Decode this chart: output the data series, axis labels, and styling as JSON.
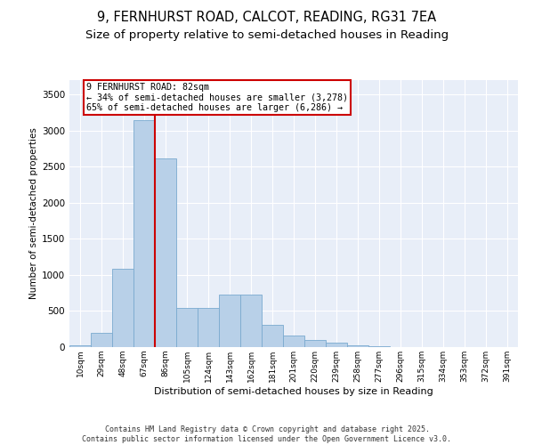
{
  "title_line1": "9, FERNHURST ROAD, CALCOT, READING, RG31 7EA",
  "title_line2": "Size of property relative to semi-detached houses in Reading",
  "xlabel": "Distribution of semi-detached houses by size in Reading",
  "ylabel": "Number of semi-detached properties",
  "categories": [
    "10sqm",
    "29sqm",
    "48sqm",
    "67sqm",
    "86sqm",
    "105sqm",
    "124sqm",
    "143sqm",
    "162sqm",
    "181sqm",
    "201sqm",
    "220sqm",
    "239sqm",
    "258sqm",
    "277sqm",
    "296sqm",
    "315sqm",
    "334sqm",
    "353sqm",
    "372sqm",
    "391sqm"
  ],
  "values": [
    25,
    200,
    1080,
    3150,
    2620,
    540,
    540,
    730,
    730,
    310,
    155,
    100,
    60,
    30,
    10,
    5,
    2,
    1,
    0,
    0,
    0
  ],
  "bar_color": "#b8d0e8",
  "bar_edge_color": "#7aaacf",
  "vline_color": "#cc0000",
  "vline_x": 3.5,
  "annotation_text": "9 FERNHURST ROAD: 82sqm\n← 34% of semi-detached houses are smaller (3,278)\n65% of semi-detached houses are larger (6,286) →",
  "annotation_box_color": "#ffffff",
  "annotation_box_edge": "#cc0000",
  "ylim": [
    0,
    3700
  ],
  "yticks": [
    0,
    500,
    1000,
    1500,
    2000,
    2500,
    3000,
    3500
  ],
  "background_color": "#e8eef8",
  "footer_text": "Contains HM Land Registry data © Crown copyright and database right 2025.\nContains public sector information licensed under the Open Government Licence v3.0.",
  "title_fontsize": 10.5,
  "subtitle_fontsize": 9.5,
  "bar_width": 1.0
}
